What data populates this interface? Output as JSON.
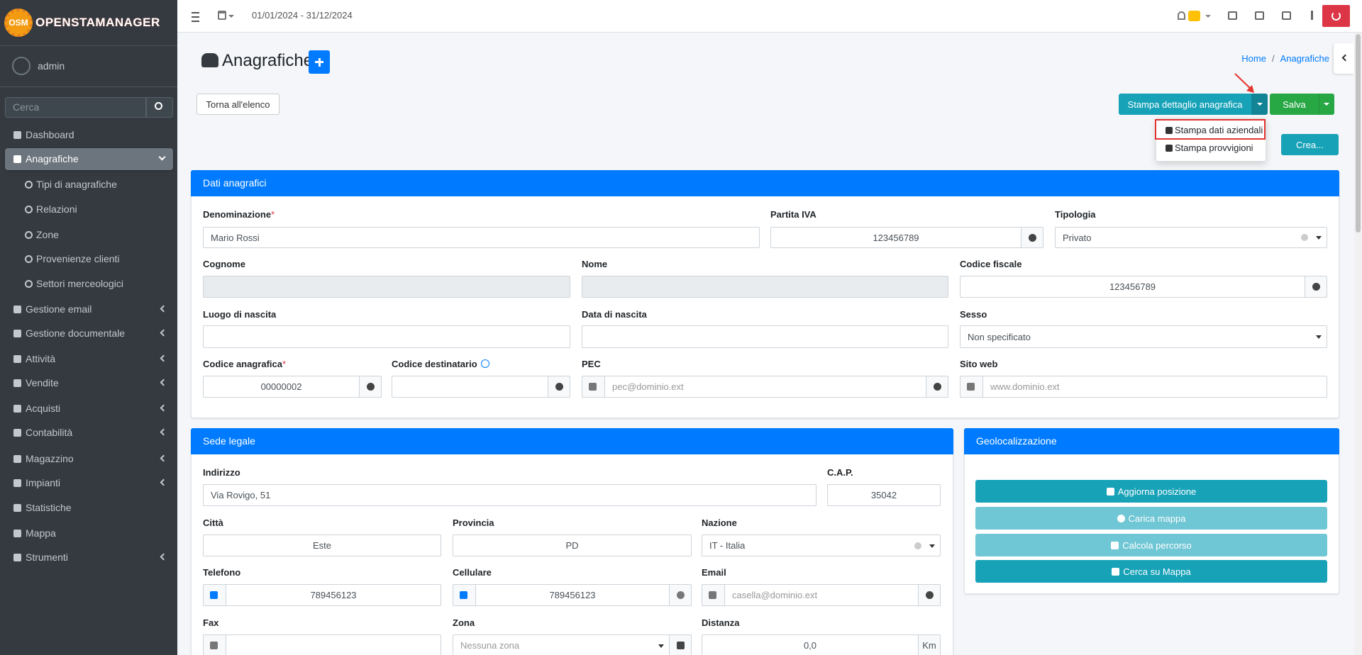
{
  "sidebar": {
    "brand_badge": "OSM",
    "brand": "OPENSTAMANAGER",
    "user": "admin",
    "search_placeholder": "Cerca",
    "menu": [
      "Dashboard",
      "Anagrafiche",
      "Gestione email",
      "Gestione documentale",
      "Attività",
      "Vendite",
      "Acquisti",
      "Contabilità",
      "Magazzino",
      "Impianti",
      "Statistiche",
      "Mappa",
      "Strumenti"
    ],
    "submenu": [
      "Tipi di anagrafiche",
      "Relazioni",
      "Zone",
      "Provenienze clienti",
      "Settori merceologici"
    ]
  },
  "topbar": {
    "date_range": "01/01/2024 - 31/12/2024"
  },
  "header": {
    "title": "Anagrafiche",
    "breadcrumb": [
      "Home",
      "Anagrafiche"
    ],
    "breadcrumb_separator": "/"
  },
  "actions": {
    "back": "Torna all'elenco",
    "print": "Stampa dettaglio anagrafica",
    "save": "Salva",
    "create": "Crea...",
    "print_menu": [
      "Stampa dati aziendali",
      "Stampa provvigioni"
    ]
  },
  "panels": [
    {
      "title": "Dati anagrafici",
      "fields": [
        {
          "label": "Denominazione",
          "required": "*",
          "value": "Mario Rossi"
        },
        {
          "label": "Partita IVA",
          "value": "123456789"
        },
        {
          "label": "Tipologia",
          "value": "Privato"
        },
        {
          "label": "Cognome"
        },
        {
          "label": "Nome"
        },
        {
          "label": "Codice fiscale",
          "value": "123456789"
        },
        {
          "label": "Luogo di nascita"
        },
        {
          "label": "Data di nascita"
        },
        {
          "label": "Sesso",
          "value": "Non specificato"
        },
        {
          "label": "Codice anagrafica",
          "required": "*",
          "value": "00000002"
        },
        {
          "label": "Codice destinatario"
        },
        {
          "label": "PEC",
          "placeholder": "pec@dominio.ext"
        },
        {
          "label": "Sito web",
          "placeholder": "www.dominio.ext"
        }
      ]
    },
    {
      "title": "Sede legale",
      "fields": [
        {
          "label": "Indirizzo",
          "value": "Via Rovigo, 51"
        },
        {
          "label": "C.A.P.",
          "value": "35042"
        },
        {
          "label": "Città",
          "value": "Este"
        },
        {
          "label": "Provincia",
          "value": "PD"
        },
        {
          "label": "Nazione",
          "value": "IT - Italia"
        },
        {
          "label": "Telefono",
          "value": "789456123"
        },
        {
          "label": "Cellulare",
          "value": "789456123"
        },
        {
          "label": "Email",
          "placeholder": "casella@dominio.ext"
        },
        {
          "label": "Fax"
        },
        {
          "label": "Zona",
          "placeholder": "Nessuna zona"
        },
        {
          "label": "Distanza",
          "value": "0,0",
          "suffix": "Km"
        }
      ]
    },
    {
      "title": "Geolocalizzazione",
      "buttons": [
        "Aggiorna posizione",
        "Carica mappa",
        "Calcola percorso",
        "Cerca su Mappa"
      ]
    }
  ]
}
